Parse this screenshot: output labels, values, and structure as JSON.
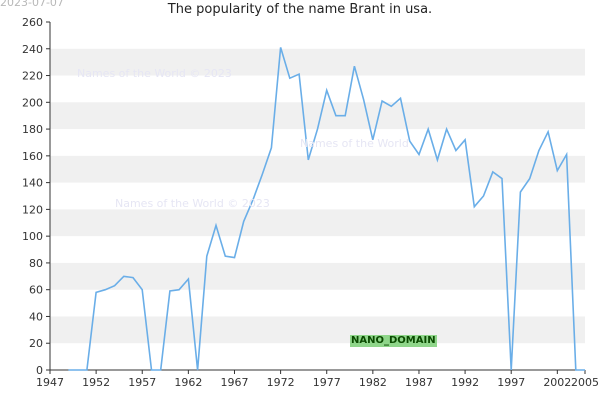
{
  "header": {
    "date_stamp": "2023-07-07",
    "title": "The popularity of the name Brant in usa."
  },
  "watermarks": [
    "Names of the World © 2023",
    "Names of the World",
    "Names of the World © 2023"
  ],
  "badge": {
    "text": "NANO_DOMAIN"
  },
  "colors": {
    "line": "#6aaee8",
    "band": "#f0f0f0",
    "axis": "#333333"
  },
  "chart_data": {
    "type": "line",
    "title": "The popularity of the name Brant in usa.",
    "xlabel": "",
    "ylabel": "",
    "xlim": [
      1947,
      2005
    ],
    "ylim": [
      0,
      260
    ],
    "x_ticks": [
      1947,
      1952,
      1957,
      1962,
      1967,
      1972,
      1977,
      1982,
      1987,
      1992,
      1997,
      2002,
      2005
    ],
    "y_ticks": [
      0,
      20,
      40,
      60,
      80,
      100,
      120,
      140,
      160,
      180,
      200,
      220,
      240,
      260
    ],
    "grid": "horizontal bands",
    "x": [
      1949,
      1950,
      1951,
      1952,
      1953,
      1954,
      1955,
      1956,
      1957,
      1958,
      1959,
      1960,
      1961,
      1962,
      1963,
      1964,
      1965,
      1966,
      1967,
      1968,
      1969,
      1970,
      1971,
      1972,
      1973,
      1974,
      1975,
      1976,
      1977,
      1978,
      1979,
      1980,
      1981,
      1982,
      1983,
      1984,
      1985,
      1986,
      1987,
      1988,
      1989,
      1990,
      1991,
      1992,
      1993,
      1994,
      1995,
      1996,
      1997,
      1998,
      1999,
      2000,
      2001,
      2002,
      2003,
      2004,
      2005
    ],
    "values": [
      0,
      0,
      0,
      58,
      60,
      63,
      70,
      69,
      60,
      0,
      0,
      59,
      60,
      68,
      0,
      85,
      108,
      85,
      84,
      111,
      127,
      146,
      166,
      241,
      218,
      221,
      157,
      180,
      209,
      190,
      190,
      227,
      202,
      172,
      201,
      197,
      203,
      171,
      161,
      180,
      157,
      180,
      164,
      172,
      122,
      130,
      148,
      143,
      0,
      133,
      143,
      164,
      178,
      149,
      161,
      0,
      0
    ]
  }
}
